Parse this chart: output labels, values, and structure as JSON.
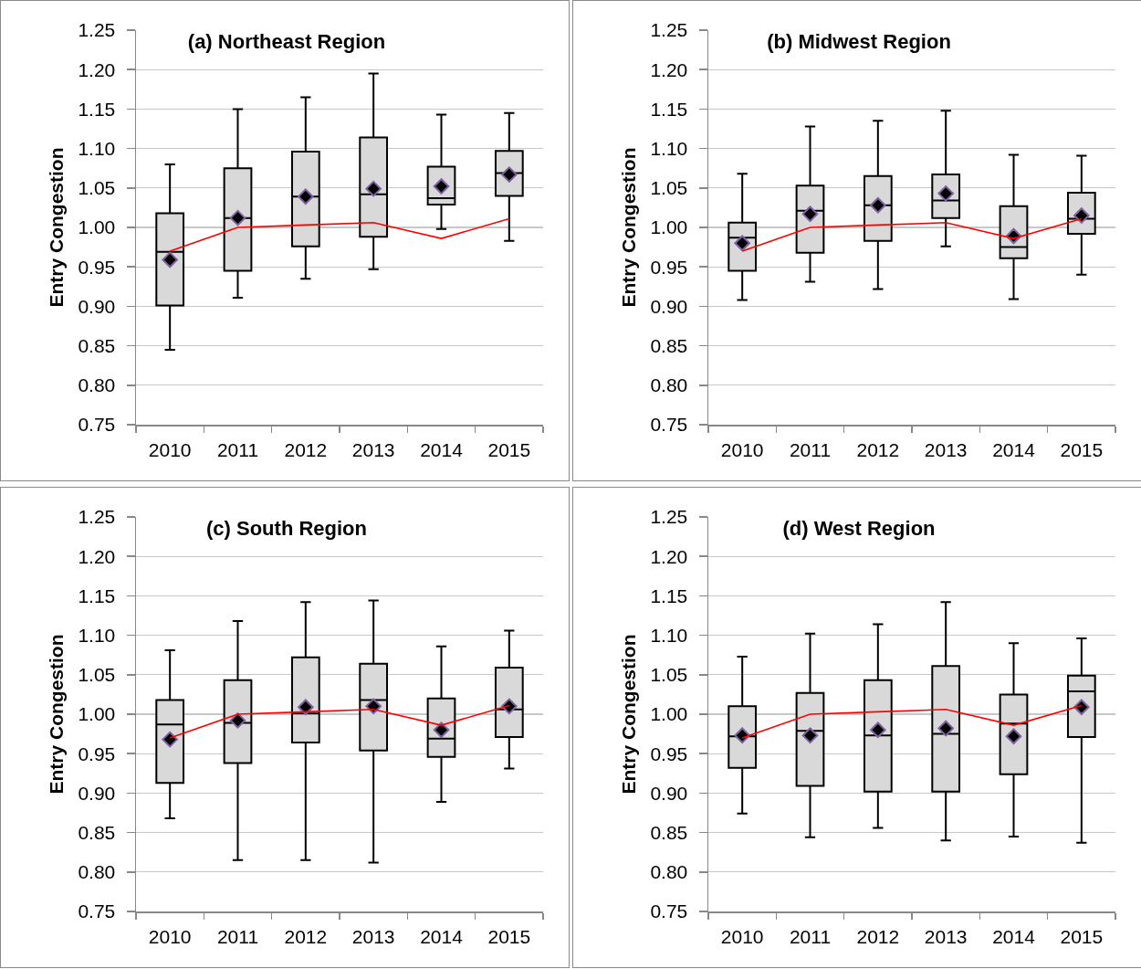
{
  "chart_data": [
    {
      "type": "box",
      "title": "(a) Northeast Region",
      "ylabel": "Entry Congestion",
      "categories": [
        "2010",
        "2011",
        "2012",
        "2013",
        "2014",
        "2015"
      ],
      "series": [
        {
          "type": "box",
          "color": "#d9d9d9",
          "marker": "diamond",
          "boxes": [
            {
              "low": 0.845,
              "q1": 0.901,
              "median": 0.969,
              "q3": 1.018,
              "high": 1.08,
              "mean": 0.959
            },
            {
              "low": 0.911,
              "q1": 0.945,
              "median": 1.012,
              "q3": 1.075,
              "high": 1.15,
              "mean": 1.012
            },
            {
              "low": 0.935,
              "q1": 0.976,
              "median": 1.039,
              "q3": 1.096,
              "high": 1.165,
              "mean": 1.039
            },
            {
              "low": 0.947,
              "q1": 0.988,
              "median": 1.042,
              "q3": 1.114,
              "high": 1.195,
              "mean": 1.049
            },
            {
              "low": 0.998,
              "q1": 1.029,
              "median": 1.037,
              "q3": 1.077,
              "high": 1.143,
              "mean": 1.052
            },
            {
              "low": 0.983,
              "q1": 1.04,
              "median": 1.069,
              "q3": 1.097,
              "high": 1.145,
              "mean": 1.067
            }
          ]
        },
        {
          "type": "line",
          "color": "#ff0000",
          "values": [
            0.97,
            1.0,
            1.003,
            1.006,
            0.986,
            1.011
          ]
        }
      ],
      "ylim": [
        0.75,
        1.25
      ],
      "yticks": [
        0.75,
        {
          "value": 0.8,
          "label": "0.80"
        },
        0.85,
        {
          "value": 0.9,
          "label": "0.90"
        },
        0.95,
        {
          "value": 1,
          "label": "1.00"
        },
        1.05,
        {
          "value": 1.1,
          "label": "1.10"
        },
        1.15,
        {
          "value": 1.2,
          "label": "1.20"
        },
        1.25
      ],
      "grid": "y"
    },
    {
      "type": "box",
      "title": "(b) Midwest Region",
      "ylabel": "Entry Congestion",
      "categories": [
        "2010",
        "2011",
        "2012",
        "2013",
        "2014",
        "2015"
      ],
      "series": [
        {
          "type": "box",
          "color": "#d9d9d9",
          "marker": "diamond",
          "boxes": [
            {
              "low": 0.908,
              "q1": 0.945,
              "median": 0.987,
              "q3": 1.006,
              "high": 1.068,
              "mean": 0.98
            },
            {
              "low": 0.931,
              "q1": 0.968,
              "median": 1.021,
              "q3": 1.053,
              "high": 1.128,
              "mean": 1.017
            },
            {
              "low": 0.922,
              "q1": 0.983,
              "median": 1.028,
              "q3": 1.065,
              "high": 1.135,
              "mean": 1.028
            },
            {
              "low": 0.976,
              "q1": 1.012,
              "median": 1.034,
              "q3": 1.067,
              "high": 1.148,
              "mean": 1.043
            },
            {
              "low": 0.909,
              "q1": 0.961,
              "median": 0.975,
              "q3": 1.027,
              "high": 1.092,
              "mean": 0.989
            },
            {
              "low": 0.94,
              "q1": 0.992,
              "median": 1.011,
              "q3": 1.044,
              "high": 1.091,
              "mean": 1.015
            }
          ]
        },
        {
          "type": "line",
          "color": "#ff0000",
          "values": [
            0.97,
            1.0,
            1.003,
            1.006,
            0.986,
            1.011
          ]
        }
      ],
      "ylim": [
        0.75,
        1.25
      ],
      "yticks": [
        0.75,
        {
          "value": 0.8,
          "label": "0.80"
        },
        0.85,
        {
          "value": 0.9,
          "label": "0.90"
        },
        0.95,
        {
          "value": 1,
          "label": "1.00"
        },
        1.05,
        {
          "value": 1.1,
          "label": "1.10"
        },
        1.15,
        {
          "value": 1.2,
          "label": "1.20"
        },
        1.25
      ],
      "grid": "y"
    },
    {
      "type": "box",
      "title": "(c) South Region",
      "ylabel": "Entry Congestion",
      "categories": [
        "2010",
        "2011",
        "2012",
        "2013",
        "2014",
        "2015"
      ],
      "series": [
        {
          "type": "box",
          "color": "#d9d9d9",
          "marker": "diamond",
          "boxes": [
            {
              "low": 0.868,
              "q1": 0.913,
              "median": 0.987,
              "q3": 1.018,
              "high": 1.081,
              "mean": 0.968
            },
            {
              "low": 0.815,
              "q1": 0.938,
              "median": 0.989,
              "q3": 1.043,
              "high": 1.118,
              "mean": 0.992
            },
            {
              "low": 0.815,
              "q1": 0.964,
              "median": 1.001,
              "q3": 1.072,
              "high": 1.142,
              "mean": 1.009
            },
            {
              "low": 0.812,
              "q1": 0.954,
              "median": 1.018,
              "q3": 1.064,
              "high": 1.144,
              "mean": 1.01
            },
            {
              "low": 0.889,
              "q1": 0.946,
              "median": 0.969,
              "q3": 1.02,
              "high": 1.086,
              "mean": 0.98
            },
            {
              "low": 0.931,
              "q1": 0.971,
              "median": 1.006,
              "q3": 1.059,
              "high": 1.106,
              "mean": 1.01
            }
          ]
        },
        {
          "type": "line",
          "color": "#ff0000",
          "values": [
            0.97,
            1.0,
            1.003,
            1.006,
            0.986,
            1.011
          ]
        }
      ],
      "ylim": [
        0.75,
        1.25
      ],
      "yticks": [
        0.75,
        {
          "value": 0.8,
          "label": "0.80"
        },
        0.85,
        {
          "value": 0.9,
          "label": "0.90"
        },
        0.95,
        {
          "value": 1,
          "label": "1.00"
        },
        1.05,
        {
          "value": 1.1,
          "label": "1.10"
        },
        1.15,
        {
          "value": 1.2,
          "label": "1.20"
        },
        1.25
      ],
      "grid": "y"
    },
    {
      "type": "box",
      "title": "(d) West Region",
      "ylabel": "Entry Congestion",
      "categories": [
        "2010",
        "2011",
        "2012",
        "2013",
        "2014",
        "2015"
      ],
      "series": [
        {
          "type": "box",
          "color": "#d9d9d9",
          "marker": "diamond",
          "boxes": [
            {
              "low": 0.874,
              "q1": 0.932,
              "median": 0.972,
              "q3": 1.01,
              "high": 1.073,
              "mean": 0.973
            },
            {
              "low": 0.844,
              "q1": 0.909,
              "median": 0.979,
              "q3": 1.027,
              "high": 1.102,
              "mean": 0.973
            },
            {
              "low": 0.856,
              "q1": 0.902,
              "median": 0.973,
              "q3": 1.043,
              "high": 1.114,
              "mean": 0.98
            },
            {
              "low": 0.84,
              "q1": 0.902,
              "median": 0.975,
              "q3": 1.061,
              "high": 1.142,
              "mean": 0.982
            },
            {
              "low": 0.845,
              "q1": 0.924,
              "median": 0.988,
              "q3": 1.025,
              "high": 1.09,
              "mean": 0.972
            },
            {
              "low": 0.837,
              "q1": 0.971,
              "median": 1.029,
              "q3": 1.049,
              "high": 1.096,
              "mean": 1.009
            }
          ]
        },
        {
          "type": "line",
          "color": "#ff0000",
          "values": [
            0.97,
            1.0,
            1.003,
            1.006,
            0.986,
            1.011
          ]
        }
      ],
      "ylim": [
        0.75,
        1.25
      ],
      "yticks": [
        0.75,
        {
          "value": 0.8,
          "label": "0.80"
        },
        0.85,
        {
          "value": 0.9,
          "label": "0.90"
        },
        0.95,
        {
          "value": 1,
          "label": "1.00"
        },
        1.05,
        {
          "value": 1.1,
          "label": "1.10"
        },
        1.15,
        {
          "value": 1.2,
          "label": "1.20"
        },
        1.25
      ],
      "grid": "y"
    }
  ]
}
